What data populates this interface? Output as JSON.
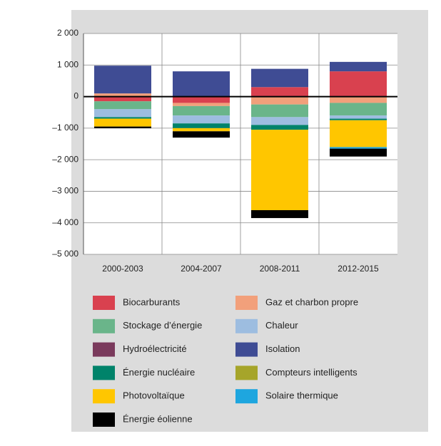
{
  "chart_data": {
    "type": "stacked-bar",
    "categories": [
      "2000-2003",
      "2004-2007",
      "2008-2011",
      "2012-2015"
    ],
    "ylim": [
      -5000,
      2000
    ],
    "yticks": [
      {
        "value": 2000,
        "label": "2 000"
      },
      {
        "value": 1000,
        "label": "1 000"
      },
      0,
      {
        "value": -1000,
        "label": "–1 000"
      },
      {
        "value": -2000,
        "label": "–2 000"
      },
      {
        "value": -3000,
        "label": "–3 000"
      },
      {
        "value": -4000,
        "label": "–4 000"
      },
      {
        "value": -5000,
        "label": "–5 000"
      }
    ],
    "grid": true,
    "series": [
      {
        "name": "Biocarburants",
        "color": "#d9414f",
        "values": [
          -150,
          -200,
          300,
          800
        ]
      },
      {
        "name": "Gaz et charbon propre",
        "color": "#f2a07b",
        "values": [
          100,
          -100,
          -250,
          -200
        ]
      },
      {
        "name": "Stockage d’énergie",
        "color": "#6ab58a",
        "values": [
          -250,
          -300,
          -400,
          -400
        ]
      },
      {
        "name": "Chaleur",
        "color": "#9dbde0",
        "values": [
          -250,
          -250,
          -250,
          -100
        ]
      },
      {
        "name": "Hydroélectricité",
        "color": "#7a3a5c",
        "values": [
          0,
          0,
          0,
          0
        ]
      },
      {
        "name": "Isolation",
        "color": "#3f4c94",
        "values": [
          880,
          800,
          580,
          300
        ]
      },
      {
        "name": "Énergie nucléaire",
        "color": "#00836a",
        "values": [
          -50,
          -150,
          -150,
          -50
        ]
      },
      {
        "name": "Compteurs intelligents",
        "color": "#a6a52a",
        "values": [
          0,
          0,
          0,
          0
        ]
      },
      {
        "name": "Photovoltaïque",
        "color": "#ffc600",
        "values": [
          -250,
          -100,
          -2550,
          -850
        ]
      },
      {
        "name": "Solaire thermique",
        "color": "#1ea6df",
        "values": [
          0,
          0,
          0,
          -50
        ]
      },
      {
        "name": "Énergie éolienne",
        "color": "#000000",
        "values": [
          -50,
          -200,
          -250,
          -250
        ]
      }
    ]
  }
}
